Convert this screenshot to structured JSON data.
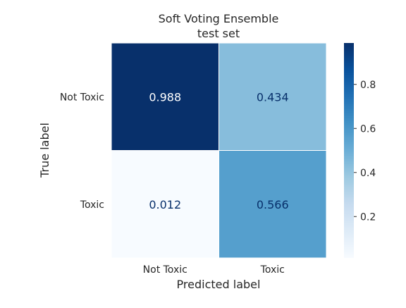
{
  "chart_data": {
    "type": "heatmap",
    "title": "Soft Voting Ensemble",
    "subtitle": "test set",
    "xlabel": "Predicted label",
    "ylabel": "True label",
    "x_categories": [
      "Not Toxic",
      "Toxic"
    ],
    "y_categories": [
      "Not Toxic",
      "Toxic"
    ],
    "values": [
      [
        0.988,
        0.434
      ],
      [
        0.012,
        0.566
      ]
    ],
    "value_labels": [
      [
        "0.988",
        "0.434"
      ],
      [
        "0.012",
        "0.566"
      ]
    ],
    "colormap": "Blues",
    "color_range": [
      0.012,
      0.988
    ],
    "colorbar_ticks": [
      0.2,
      0.4,
      0.6,
      0.8
    ],
    "colorbar_tick_labels": [
      "0.2",
      "0.4",
      "0.6",
      "0.8"
    ],
    "grid": false,
    "colors": {
      "dark_text": "#08306b",
      "light_text": "#ffffff",
      "cell_gap": "#ffffff"
    }
  }
}
